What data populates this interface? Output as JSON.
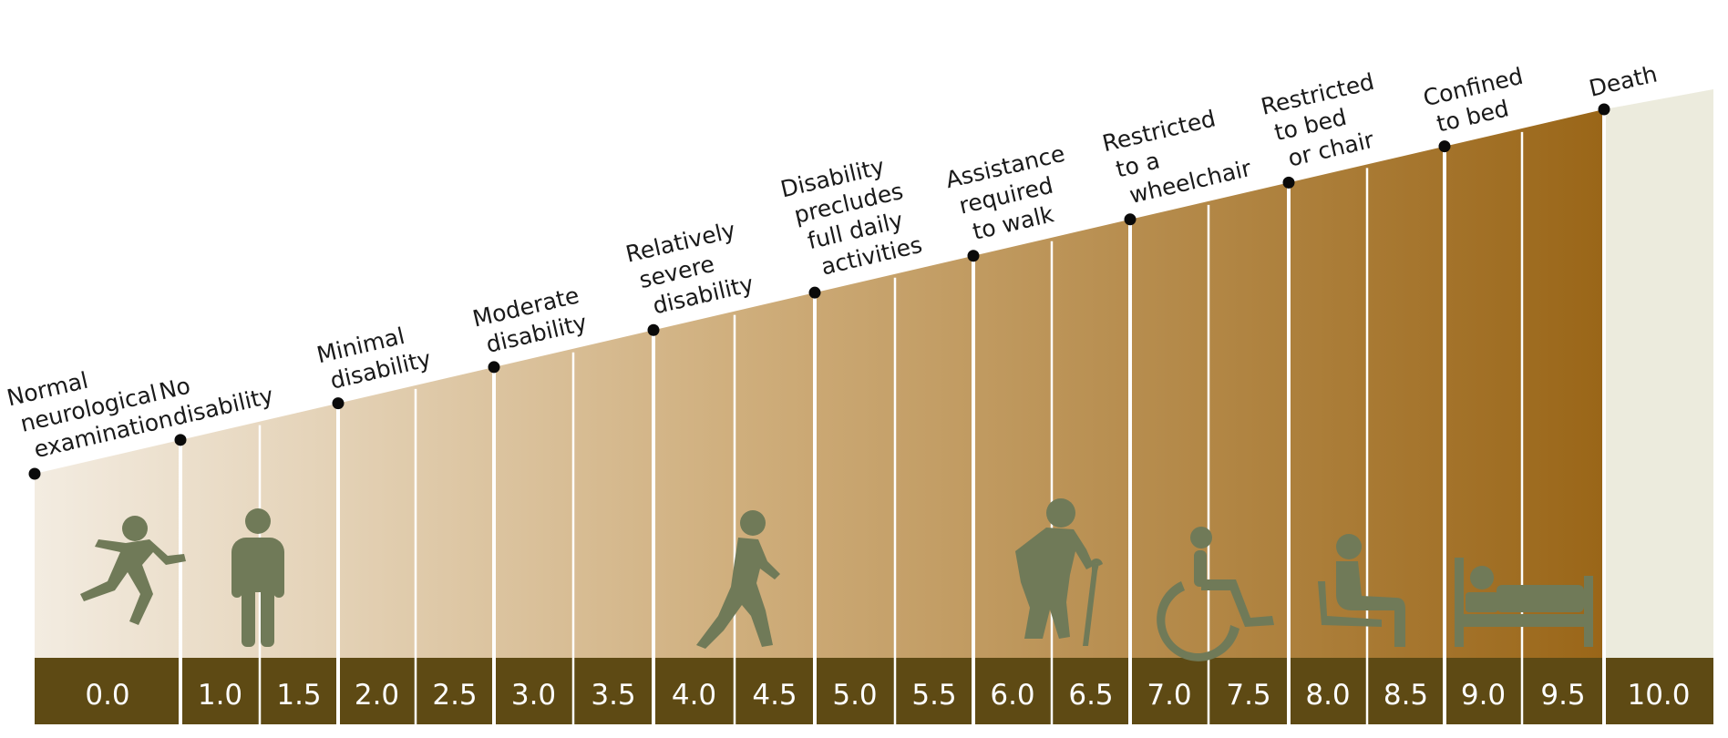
{
  "scale": {
    "scores": [
      "0.0",
      "1.0",
      "1.5",
      "2.0",
      "2.5",
      "3.0",
      "3.5",
      "4.0",
      "4.5",
      "5.0",
      "5.5",
      "6.0",
      "6.5",
      "7.0",
      "7.5",
      "8.0",
      "8.5",
      "9.0",
      "9.5",
      "10.0"
    ]
  },
  "milestones": [
    {
      "lines": [
        "Normal",
        "neurological",
        "examination"
      ]
    },
    {
      "lines": [
        "No",
        "disability"
      ]
    },
    {
      "lines": [
        "Minimal",
        "disability"
      ]
    },
    {
      "lines": [
        "Moderate",
        "disability"
      ]
    },
    {
      "lines": [
        "Relatively",
        "severe",
        "disability"
      ]
    },
    {
      "lines": [
        "Disability",
        "precludes",
        "full daily",
        "activities"
      ]
    },
    {
      "lines": [
        "Assistance",
        "required",
        "to walk"
      ]
    },
    {
      "lines": [
        "Restricted",
        "to a",
        "wheelchair"
      ]
    },
    {
      "lines": [
        "Restricted",
        "to bed",
        "or chair"
      ]
    },
    {
      "lines": [
        "Confined",
        "to bed"
      ]
    },
    {
      "lines": [
        "Death"
      ]
    }
  ],
  "icons": [
    "running-person-icon",
    "standing-person-icon",
    "walking-person-icon",
    "person-with-cane-icon",
    "wheelchair-icon",
    "seated-person-icon",
    "bed-icon"
  ],
  "colors": {
    "bar": "#5e4a14",
    "gradient_start": "#f3ece1",
    "gradient_mid": "#c9a572",
    "gradient_end": "#9a6618",
    "death_zone": "#ecebdd",
    "icon": "#707a58",
    "divider": "#ffffff"
  }
}
